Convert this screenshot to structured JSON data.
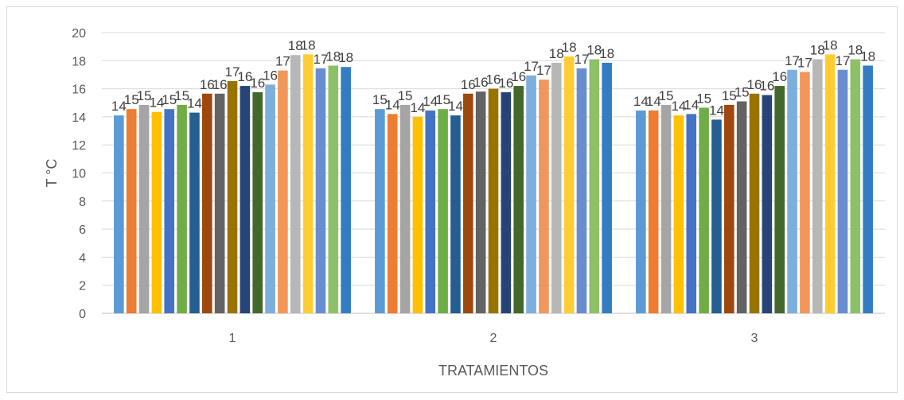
{
  "chart_data": {
    "type": "bar",
    "title": "",
    "xlabel": "TRATAMIENTOS",
    "ylabel": "T °C",
    "ylim": [
      0,
      20
    ],
    "yticks": [
      0,
      2,
      4,
      6,
      8,
      10,
      12,
      14,
      16,
      18,
      20
    ],
    "grid": true,
    "legend": "none",
    "categories": [
      "1",
      "2",
      "3"
    ],
    "series_colors": [
      "#5b9bd5",
      "#ed7d31",
      "#a5a5a5",
      "#ffc000",
      "#4472c4",
      "#70ad47",
      "#255e91",
      "#9e480e",
      "#636363",
      "#997300",
      "#264478",
      "#43682b",
      "#7cafdd",
      "#f1975a",
      "#b7b7b7",
      "#ffcd33",
      "#698ed0",
      "#8cc168",
      "#327dc2"
    ],
    "series": [
      {
        "values": [
          14.1,
          14.55,
          14.45
        ],
        "labels": [
          "14",
          "15",
          "14"
        ]
      },
      {
        "values": [
          14.55,
          14.2,
          14.45
        ],
        "labels": [
          "15",
          "14",
          "14"
        ]
      },
      {
        "values": [
          14.85,
          14.85,
          14.85
        ],
        "labels": [
          "15",
          "15",
          "15"
        ]
      },
      {
        "values": [
          14.35,
          14.0,
          14.1
        ],
        "labels": [
          "14",
          "14",
          "14"
        ]
      },
      {
        "values": [
          14.55,
          14.45,
          14.2
        ],
        "labels": [
          "15",
          "14",
          "14"
        ]
      },
      {
        "values": [
          14.85,
          14.55,
          14.65
        ],
        "labels": [
          "15",
          "15",
          "15"
        ]
      },
      {
        "values": [
          14.3,
          14.1,
          13.8
        ],
        "labels": [
          "14",
          "14",
          "14"
        ]
      },
      {
        "values": [
          15.65,
          15.65,
          14.85
        ],
        "labels": [
          "16",
          "16",
          "15"
        ]
      },
      {
        "values": [
          15.65,
          15.8,
          15.1
        ],
        "labels": [
          "16",
          "16",
          "15"
        ]
      },
      {
        "values": [
          16.55,
          16.0,
          15.65
        ],
        "labels": [
          "17",
          "16",
          "16"
        ]
      },
      {
        "values": [
          16.2,
          15.75,
          15.55
        ],
        "labels": [
          "16",
          "16",
          "16"
        ]
      },
      {
        "values": [
          15.75,
          16.2,
          16.2
        ],
        "labels": [
          "16",
          "16",
          "16"
        ]
      },
      {
        "values": [
          16.3,
          16.95,
          17.35
        ],
        "labels": [
          "16",
          "17",
          "17"
        ]
      },
      {
        "values": [
          17.3,
          16.65,
          17.2
        ],
        "labels": [
          "17",
          "17",
          "17"
        ]
      },
      {
        "values": [
          18.4,
          17.85,
          18.1
        ],
        "labels": [
          "18",
          "18",
          "18"
        ]
      },
      {
        "values": [
          18.45,
          18.3,
          18.45
        ],
        "labels": [
          "18",
          "18",
          "18"
        ]
      },
      {
        "values": [
          17.45,
          17.45,
          17.35
        ],
        "labels": [
          "17",
          "17",
          "17"
        ]
      },
      {
        "values": [
          17.65,
          18.1,
          18.1
        ],
        "labels": [
          "18",
          "18",
          "18"
        ]
      },
      {
        "values": [
          17.55,
          17.85,
          17.65
        ],
        "labels": [
          "18",
          "18",
          "18"
        ]
      }
    ]
  }
}
